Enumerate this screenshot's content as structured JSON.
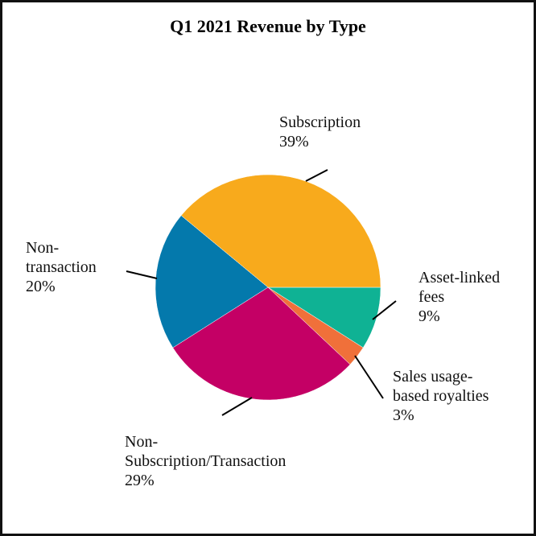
{
  "chart_data": {
    "type": "pie",
    "title": "Q1 2021 Revenue by Type",
    "start_angle_deg": 0,
    "direction": "clockwise",
    "slices": [
      {
        "name": "Asset-linked fees",
        "value": 9,
        "color": "#0FB294",
        "label_lines": [
          "Asset-linked",
          "fees",
          "9%"
        ]
      },
      {
        "name": "Sales usage-based royalties",
        "value": 3,
        "color": "#F0703A",
        "label_lines": [
          "Sales usage-",
          "based royalties",
          "3%"
        ]
      },
      {
        "name": "Non-Subscription/Transaction",
        "value": 29,
        "color": "#C40065",
        "label_lines": [
          "Non-",
          "Subscription/Transaction",
          "29%"
        ]
      },
      {
        "name": "Non-transaction",
        "value": 20,
        "color": "#0479AC",
        "label_lines": [
          "Non-",
          "transaction",
          "20%"
        ]
      },
      {
        "name": "Subscription",
        "value": 39,
        "color": "#F8AA1C",
        "label_lines": [
          "Subscription",
          "39%"
        ]
      }
    ]
  },
  "labels": {
    "subscription": "Subscription\n39%",
    "asset_linked": "Asset-linked\nfees\n9%",
    "sales_usage": "Sales usage-\nbased royalties\n3%",
    "non_sub": "Non-\nSubscription/Transaction\n29%",
    "non_transaction": "Non-\ntransaction\n20%"
  }
}
